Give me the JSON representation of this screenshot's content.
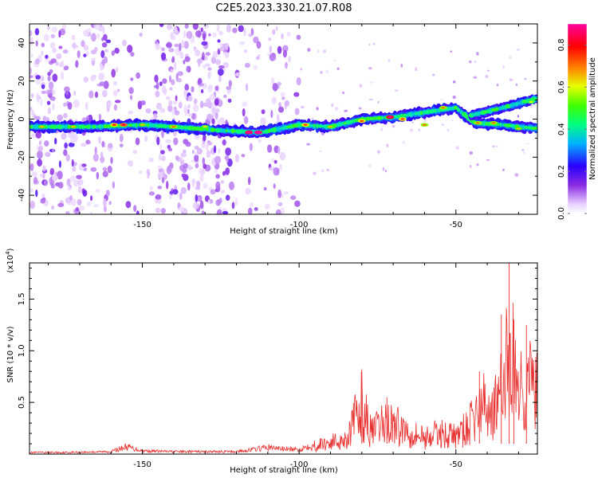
{
  "title": "C2E5.2023.330.21.07.R08",
  "chart_data": [
    {
      "type": "heatmap",
      "xlabel": "Height of straight line (km)",
      "ylabel": "Frequency (Hz)",
      "xlim": [
        -186,
        -24
      ],
      "ylim": [
        -50,
        50
      ],
      "xticks": [
        -150,
        -100,
        -50
      ],
      "yticks": [
        -40,
        -20,
        0,
        20,
        40
      ],
      "colorbar": {
        "label": "Normalized spectral amplitude",
        "ticks": [
          0.0,
          0.2,
          0.4,
          0.6,
          0.8
        ],
        "range": [
          0,
          0.9
        ]
      },
      "ridge": {
        "description_points": [
          [
            -186,
            -4
          ],
          [
            -165,
            -4
          ],
          [
            -150,
            -3
          ],
          [
            -140,
            -4
          ],
          [
            -125,
            -6
          ],
          [
            -112,
            -7
          ],
          [
            -100,
            -3
          ],
          [
            -90,
            -4
          ],
          [
            -80,
            0
          ],
          [
            -70,
            1
          ],
          [
            -62,
            3
          ],
          [
            -50,
            6
          ],
          [
            -44,
            -2
          ],
          [
            -35,
            -3
          ],
          [
            -24,
            -5
          ]
        ],
        "upper_branch": [
          [
            -45,
            2
          ],
          [
            -35,
            6
          ],
          [
            -24,
            11
          ]
        ]
      }
    },
    {
      "type": "line",
      "xlabel": "Height of straight line (km)",
      "ylabel": "SNR (10 * v/v)",
      "yscale_note": "(x10^4)",
      "xlim": [
        -186,
        -24
      ],
      "ylim": [
        0,
        1.85
      ],
      "xticks": [
        -150,
        -100,
        -50
      ],
      "yticks": [
        0.5,
        1.0,
        1.5
      ],
      "ytick_labels": [
        "0.5",
        "1.0",
        "1.5"
      ],
      "series": [
        {
          "color": "#e8302e",
          "points": [
            [
              -186,
              0.02
            ],
            [
              -175,
              0.02
            ],
            [
              -160,
              0.03
            ],
            [
              -155,
              0.09
            ],
            [
              -150,
              0.04
            ],
            [
              -140,
              0.03
            ],
            [
              -120,
              0.03
            ],
            [
              -110,
              0.08
            ],
            [
              -100,
              0.05
            ],
            [
              -95,
              0.14
            ],
            [
              -90,
              0.2
            ],
            [
              -85,
              0.25
            ],
            [
              -82,
              0.6
            ],
            [
              -80,
              0.82
            ],
            [
              -77,
              0.35
            ],
            [
              -72,
              0.55
            ],
            [
              -68,
              0.45
            ],
            [
              -60,
              0.28
            ],
            [
              -55,
              0.35
            ],
            [
              -50,
              0.3
            ],
            [
              -46,
              0.45
            ],
            [
              -42,
              0.8
            ],
            [
              -38,
              0.75
            ],
            [
              -35,
              1.05
            ],
            [
              -33,
              1.85
            ],
            [
              -31,
              1.3
            ],
            [
              -29,
              1.05
            ],
            [
              -27,
              1.2
            ],
            [
              -24,
              1.05
            ]
          ]
        }
      ]
    }
  ]
}
